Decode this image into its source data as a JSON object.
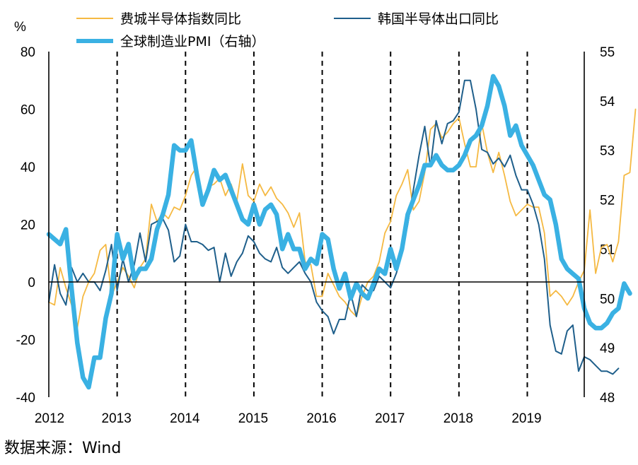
{
  "chart_data": {
    "type": "line",
    "left_axis_unit": "%",
    "left_ylim": [
      -40,
      80
    ],
    "left_ticks": [
      "80",
      "60",
      "40",
      "20",
      "0",
      "-20",
      "-40"
    ],
    "left_tick_values": [
      80,
      60,
      40,
      20,
      0,
      -20,
      -40
    ],
    "right_ylim": [
      48,
      55
    ],
    "right_ticks": [
      "55",
      "54",
      "53",
      "52",
      "51",
      "50",
      "49",
      "48"
    ],
    "right_tick_values": [
      55,
      54,
      53,
      52,
      51,
      50,
      49,
      48
    ],
    "x_range": [
      2012,
      2019.833
    ],
    "x_ticks": [
      "2012",
      "2013",
      "2014",
      "2015",
      "2016",
      "2017",
      "2018",
      "2019"
    ],
    "x_tick_values": [
      2012,
      2013,
      2014,
      2015,
      2016,
      2017,
      2018,
      2019
    ],
    "year_dividers": [
      2013,
      2014,
      2015,
      2016,
      2017,
      2018,
      2019
    ],
    "series": [
      {
        "name": "费城半导体指数同比",
        "axis": "left",
        "color": "#F5B942",
        "start": 2012,
        "values": [
          -7,
          -8,
          5,
          -2,
          -8,
          -16,
          -5,
          0,
          3,
          11,
          13,
          -5,
          0,
          5,
          2,
          -2,
          5,
          8,
          27,
          21,
          24,
          22,
          26,
          25,
          30,
          37,
          40,
          28,
          33,
          34,
          36,
          30,
          34,
          28,
          41,
          30,
          28,
          34,
          30,
          33,
          29,
          27,
          24,
          19,
          24,
          7,
          6,
          -5,
          -5,
          3,
          -1,
          -5,
          -7,
          -10,
          -12,
          -5,
          0,
          2,
          7,
          17,
          21,
          30,
          34,
          39,
          25,
          28,
          38,
          53,
          55,
          50,
          52,
          55,
          57,
          48,
          40,
          40,
          55,
          45,
          38,
          45,
          37,
          28,
          23,
          25,
          27,
          26,
          26,
          17,
          -5,
          -3,
          -5,
          -8,
          -5,
          0,
          4,
          25,
          3,
          12,
          13,
          7,
          14,
          37,
          38,
          60
        ]
      },
      {
        "name": "韩国半导体出口同比",
        "axis": "left",
        "color": "#1F5F8B",
        "start": 2012,
        "values": [
          -7,
          6,
          -4,
          -8,
          5,
          0,
          3,
          0,
          0,
          -3,
          4,
          13,
          -3,
          8,
          0,
          6,
          17,
          7,
          20,
          21,
          22,
          18,
          7,
          9,
          20,
          14,
          14,
          13,
          11,
          12,
          0,
          10,
          2,
          7,
          10,
          16,
          14,
          10,
          8,
          7,
          12,
          5,
          3,
          5,
          7,
          3,
          0,
          -7,
          -10,
          -12,
          -18,
          -13,
          -13,
          -4,
          -12,
          -1,
          -3,
          -3,
          2,
          0,
          -2,
          3,
          10,
          20,
          32,
          44,
          54,
          40,
          56,
          48,
          55,
          56,
          59,
          70,
          70,
          60,
          46,
          45,
          41,
          43,
          40,
          44,
          37,
          32,
          32,
          27,
          20,
          8,
          -15,
          -24,
          -25,
          -17,
          -15,
          -31,
          -26,
          -27,
          -29,
          -31,
          -31,
          -32,
          -30
        ]
      },
      {
        "name": "全球制造业PMI（右轴）",
        "axis": "right",
        "color": "#3AB1E3",
        "start": 2012,
        "values": [
          51.3,
          51.2,
          51.1,
          51.4,
          50.2,
          49.1,
          48.4,
          48.2,
          48.8,
          48.8,
          49.6,
          50.1,
          51.3,
          50.8,
          51.1,
          50.4,
          50.6,
          50.6,
          50.8,
          51.4,
          51.7,
          52.1,
          53.1,
          53.0,
          53.0,
          53.2,
          52.5,
          51.9,
          52.2,
          52.6,
          52.4,
          52.5,
          52.2,
          51.9,
          51.6,
          51.5,
          51.9,
          51.5,
          51.8,
          51.9,
          51.7,
          51.0,
          51.3,
          51.0,
          51.0,
          50.6,
          50.8,
          50.7,
          51.3,
          51.2,
          50.6,
          50.2,
          50.5,
          50.0,
          50.3,
          50.1,
          50.0,
          50.3,
          50.6,
          50.5,
          51.0,
          50.6,
          51.0,
          51.7,
          52.0,
          52.3,
          52.7,
          52.7,
          52.9,
          52.7,
          52.6,
          52.6,
          52.7,
          52.9,
          53.2,
          53.3,
          53.5,
          53.9,
          54.5,
          54.3,
          53.9,
          53.3,
          53.5,
          53.1,
          52.9,
          52.7,
          52.4,
          52.1,
          52.0,
          51.5,
          50.8,
          50.6,
          50.5,
          50.4,
          49.8,
          49.5,
          49.4,
          49.4,
          49.5,
          49.7,
          49.8,
          50.3,
          50.1
        ]
      }
    ],
    "legend": {
      "philly": "费城半导体指数同比",
      "korea": "韩国半导体出口同比",
      "pmi": "全球制造业PMI（右轴）"
    }
  },
  "source_text": "数据来源：Wind"
}
